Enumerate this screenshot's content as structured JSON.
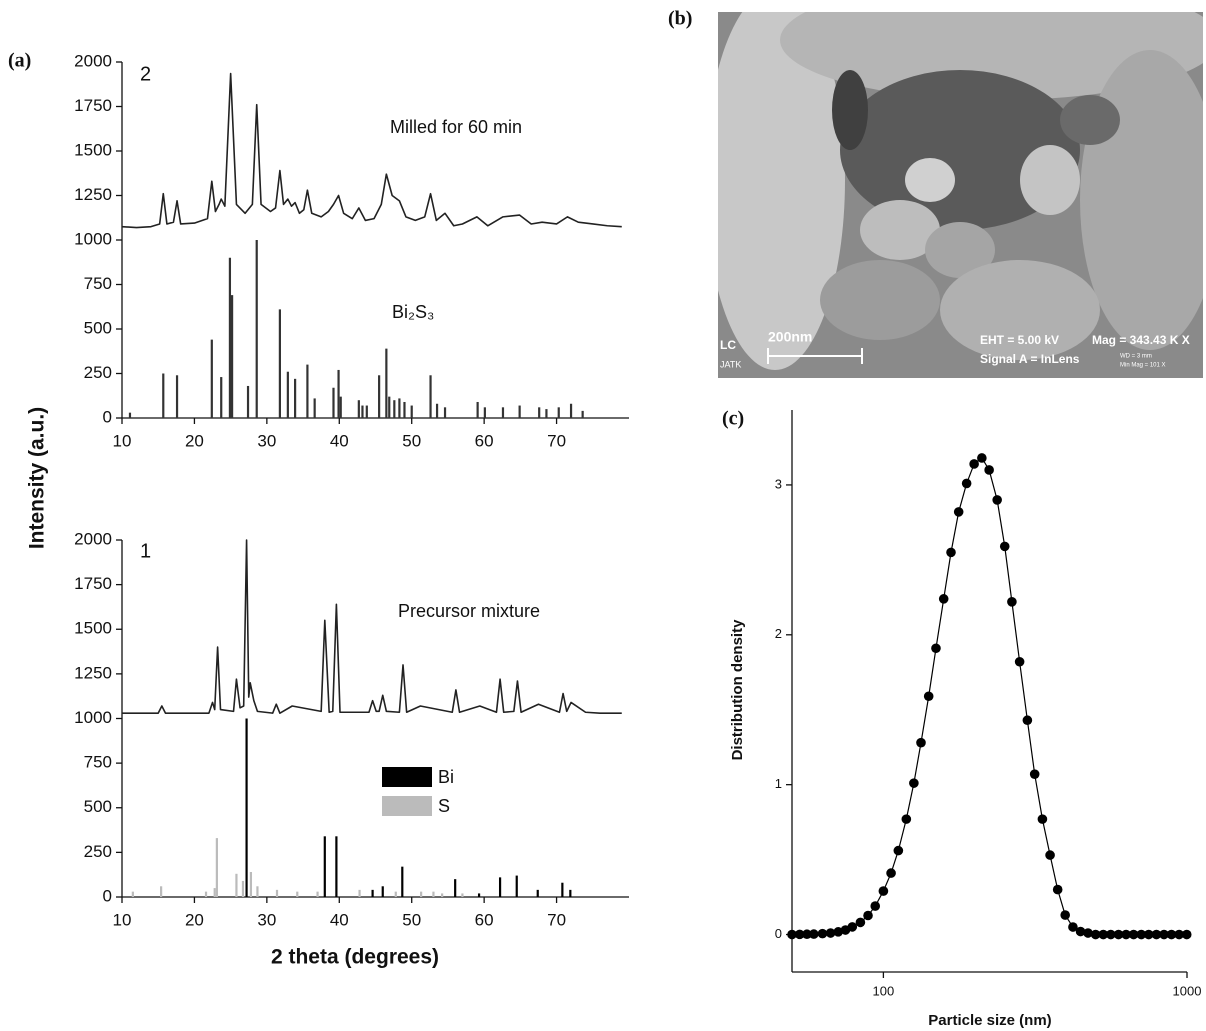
{
  "chart_data": [
    {
      "type": "xrd",
      "label": "(a)",
      "panel_number": "2",
      "ylabel": "Intensity (a.u.)",
      "xlim": [
        10,
        80
      ],
      "ylim": [
        0,
        2000
      ],
      "xticks": [
        10,
        20,
        30,
        40,
        50,
        60,
        70
      ],
      "yticks": [
        0,
        250,
        500,
        750,
        1000,
        1250,
        1500,
        1750,
        2000
      ],
      "series": [
        {
          "name": "Milled for 60 min",
          "type": "line",
          "color": "#222222",
          "x": [
            10,
            12,
            14,
            15.2,
            15.7,
            16.2,
            17.1,
            17.6,
            18.1,
            20,
            21.8,
            22.4,
            22.9,
            23.4,
            23.7,
            24.2,
            25.0,
            25.8,
            27,
            28,
            28.6,
            29.2,
            30.5,
            31.2,
            31.8,
            32.3,
            32.9,
            33.4,
            33.9,
            34.5,
            35.1,
            35.6,
            36.2,
            37.5,
            38.5,
            39.2,
            39.9,
            40.6,
            41.8,
            42.7,
            43.6,
            44.8,
            45.8,
            46.5,
            47.3,
            48.3,
            49.2,
            50.5,
            51.8,
            52.6,
            53.4,
            54.6,
            55.8,
            57,
            59,
            60.5,
            62.6,
            64.9,
            66.5,
            68,
            70,
            71.5,
            73,
            75,
            77,
            79
          ],
          "values": [
            1075,
            1070,
            1075,
            1090,
            1260,
            1090,
            1100,
            1220,
            1090,
            1095,
            1120,
            1330,
            1160,
            1200,
            1230,
            1190,
            1935,
            1200,
            1150,
            1200,
            1760,
            1200,
            1160,
            1180,
            1390,
            1200,
            1230,
            1190,
            1210,
            1150,
            1170,
            1280,
            1150,
            1130,
            1160,
            1200,
            1250,
            1150,
            1120,
            1180,
            1110,
            1120,
            1200,
            1370,
            1250,
            1220,
            1130,
            1110,
            1130,
            1260,
            1110,
            1150,
            1080,
            1090,
            1130,
            1080,
            1130,
            1140,
            1090,
            1100,
            1090,
            1130,
            1100,
            1090,
            1080,
            1075
          ]
        },
        {
          "name": "Bi₂S₃",
          "type": "stem",
          "color": "#333333",
          "x": [
            11.1,
            15.7,
            17.6,
            22.4,
            23.7,
            24.9,
            25.2,
            27.4,
            28.6,
            31.8,
            32.9,
            33.9,
            35.6,
            36.6,
            39.2,
            39.9,
            40.2,
            42.7,
            43.2,
            43.8,
            45.5,
            46.5,
            46.9,
            47.6,
            48.3,
            49.0,
            50.0,
            52.6,
            53.5,
            54.6,
            59.1,
            60.1,
            62.6,
            64.9,
            67.6,
            68.6,
            70.3,
            72.0,
            73.6
          ],
          "values": [
            30,
            250,
            240,
            440,
            230,
            900,
            690,
            180,
            1000,
            610,
            260,
            220,
            300,
            110,
            170,
            270,
            120,
            100,
            70,
            70,
            240,
            390,
            120,
            100,
            110,
            90,
            70,
            240,
            80,
            60,
            90,
            60,
            60,
            70,
            60,
            50,
            60,
            80,
            40
          ]
        }
      ]
    },
    {
      "type": "xrd",
      "panel_number": "1",
      "xlabel": "2 theta (degrees)",
      "legend": "center",
      "xlim": [
        10,
        80
      ],
      "ylim": [
        0,
        2000
      ],
      "xticks": [
        10,
        20,
        30,
        40,
        50,
        60,
        70
      ],
      "yticks": [
        0,
        250,
        500,
        750,
        1000,
        1250,
        1500,
        1750,
        2000
      ],
      "series": [
        {
          "name": "Precursor mixture",
          "type": "line",
          "color": "#222222",
          "x": [
            10,
            15,
            15.5,
            16,
            22,
            22.5,
            22.8,
            23.2,
            23.6,
            25.4,
            25.8,
            26.3,
            26.8,
            27.2,
            27.5,
            27.7,
            28.2,
            28.7,
            30.8,
            31.3,
            31.8,
            33.5,
            37.5,
            38.0,
            38.6,
            39.1,
            39.6,
            40.1,
            44.1,
            44.6,
            45.1,
            45.5,
            46.0,
            46.5,
            48.3,
            48.8,
            49.3,
            51.2,
            55.6,
            56.1,
            56.6,
            59.4,
            61.7,
            62.2,
            62.7,
            64.1,
            64.6,
            65.1,
            67.5,
            70.4,
            70.9,
            71.4,
            72.0,
            74,
            76,
            79
          ],
          "values": [
            1030,
            1030,
            1070,
            1030,
            1030,
            1090,
            1050,
            1400,
            1050,
            1040,
            1220,
            1060,
            1070,
            2000,
            1120,
            1200,
            1100,
            1040,
            1030,
            1080,
            1030,
            1070,
            1040,
            1550,
            1035,
            1040,
            1640,
            1035,
            1035,
            1100,
            1040,
            1040,
            1130,
            1040,
            1035,
            1300,
            1035,
            1070,
            1035,
            1160,
            1035,
            1070,
            1035,
            1220,
            1035,
            1040,
            1210,
            1035,
            1080,
            1035,
            1140,
            1040,
            1090,
            1035,
            1030,
            1030
          ]
        },
        {
          "name": "Bi",
          "type": "stem",
          "color": "#000000",
          "x": [
            27.2,
            38.0,
            39.6,
            44.6,
            46.0,
            48.7,
            56.0,
            59.3,
            62.2,
            64.5,
            67.4,
            70.8,
            71.9
          ],
          "values": [
            1000,
            340,
            340,
            40,
            60,
            170,
            100,
            20,
            110,
            120,
            40,
            80,
            40
          ]
        },
        {
          "name": "S",
          "type": "stem",
          "color": "#bbbbbb",
          "x": [
            11.5,
            15.4,
            21.6,
            22.8,
            23.1,
            25.8,
            26.7,
            27.8,
            28.7,
            31.4,
            34.2,
            37.0,
            42.8,
            47.8,
            51.3,
            53.0,
            54.2,
            57.0
          ],
          "values": [
            30,
            60,
            30,
            50,
            330,
            130,
            90,
            140,
            60,
            40,
            30,
            30,
            40,
            30,
            30,
            30,
            20,
            20
          ]
        }
      ]
    },
    {
      "type": "line",
      "label": "(c)",
      "xlabel": "Particle size (nm)",
      "ylabel": "Distribution density",
      "xscale": "log",
      "xlim": [
        50,
        1000
      ],
      "ylim": [
        -0.25,
        3.5
      ],
      "xticks": [
        100,
        1000
      ],
      "yticks": [
        0,
        1,
        2,
        3
      ],
      "markers": true,
      "series": [
        {
          "color": "#000000",
          "x": [
            50,
            53,
            56,
            59,
            63,
            67,
            71,
            75,
            79,
            84,
            89,
            94,
            100,
            106,
            112,
            119,
            126,
            133,
            141,
            149,
            158,
            167,
            177,
            188,
            199,
            211,
            223,
            237,
            251,
            265,
            281,
            298,
            315,
            334,
            354,
            375,
            397,
            421,
            446,
            472,
            500,
            530,
            561,
            595,
            630,
            667,
            707,
            748,
            793,
            840,
            889,
            942,
            998
          ],
          "values": [
            0,
            0.001,
            0.002,
            0.003,
            0.006,
            0.01,
            0.018,
            0.03,
            0.051,
            0.081,
            0.127,
            0.19,
            0.29,
            0.41,
            0.56,
            0.77,
            1.01,
            1.28,
            1.59,
            1.91,
            2.24,
            2.55,
            2.82,
            3.01,
            3.14,
            3.18,
            3.1,
            2.9,
            2.59,
            2.22,
            1.82,
            1.43,
            1.07,
            0.77,
            0.53,
            0.3,
            0.13,
            0.05,
            0.02,
            0.01,
            0,
            0,
            0,
            0,
            0,
            0,
            0,
            0,
            0,
            0,
            0,
            0,
            0
          ]
        }
      ]
    }
  ],
  "sem_image": {
    "label": "(b)",
    "scale_bar": "200nm",
    "eht": "EHT =  5.00 kV",
    "mag": "Mag = 343.43 K X",
    "signal": "Signal A = InLens",
    "wd": "WD =  3 mm",
    "min_mag": "Min Mag =  101 X",
    "logo": [
      "LC",
      "JATK"
    ]
  }
}
